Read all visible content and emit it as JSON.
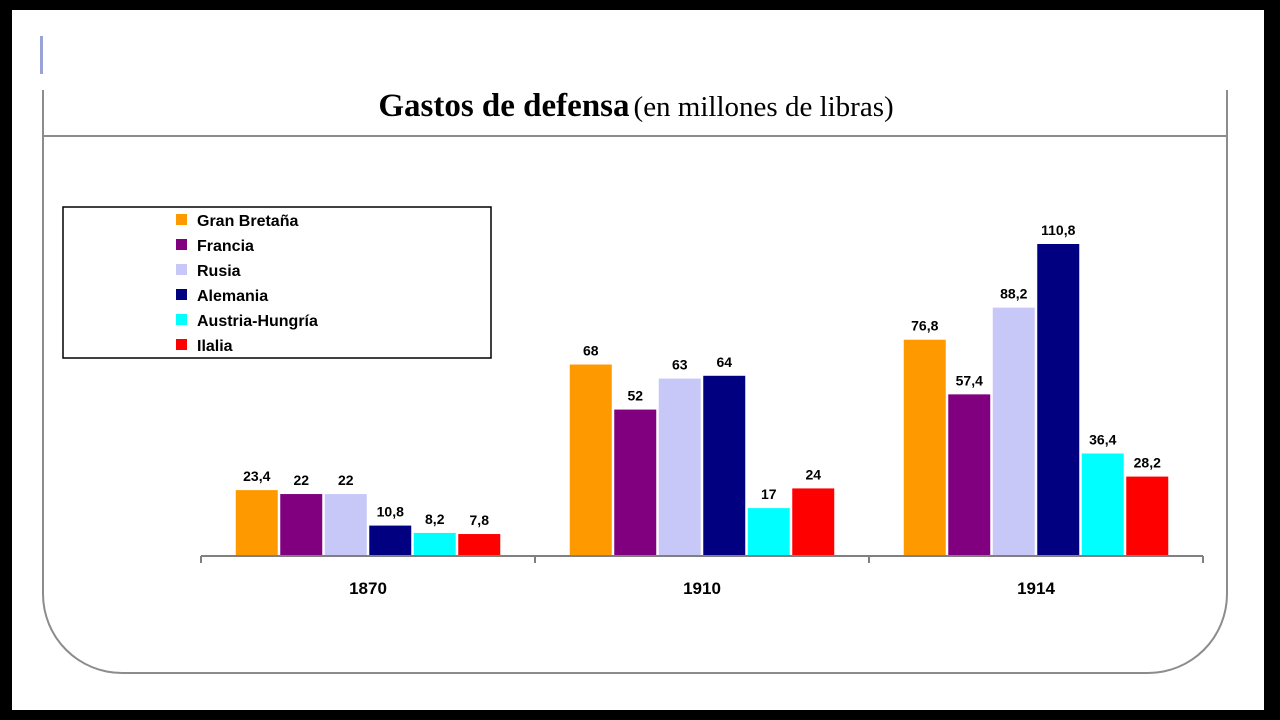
{
  "colors": {
    "Gran Bretaña": "#ff9900",
    "Francia": "#800080",
    "Rusia": "#c8c8f8",
    "Alemania": "#000080",
    "Austria-Hungría": "#00ffff",
    "Ilalia": "#ff0000"
  },
  "chart_data": {
    "type": "bar",
    "title": "Gastos de defensa",
    "subtitle": "(en millones de libras)",
    "categories": [
      "1870",
      "1910",
      "1914"
    ],
    "series": [
      {
        "name": "Gran Bretaña",
        "values": [
          23.4,
          68,
          76.8
        ],
        "labels": [
          "23,4",
          "68",
          "76,8"
        ]
      },
      {
        "name": "Francia",
        "values": [
          22,
          52,
          57.4
        ],
        "labels": [
          "22",
          "52",
          "57,4"
        ]
      },
      {
        "name": "Rusia",
        "values": [
          22,
          63,
          88.2
        ],
        "labels": [
          "22",
          "63",
          "88,2"
        ]
      },
      {
        "name": "Alemania",
        "values": [
          10.8,
          64,
          110.8
        ],
        "labels": [
          "10,8",
          "64",
          "110,8"
        ]
      },
      {
        "name": "Austria-Hungría",
        "values": [
          8.2,
          17,
          36.4
        ],
        "labels": [
          "8,2",
          "17",
          "36,4"
        ]
      },
      {
        "name": "Ilalia",
        "values": [
          7.8,
          24,
          28.2
        ],
        "labels": [
          "7,8",
          "24",
          "28,2"
        ]
      }
    ],
    "ylim": [
      0,
      110.8
    ],
    "grid": false,
    "legend": "top-left"
  }
}
